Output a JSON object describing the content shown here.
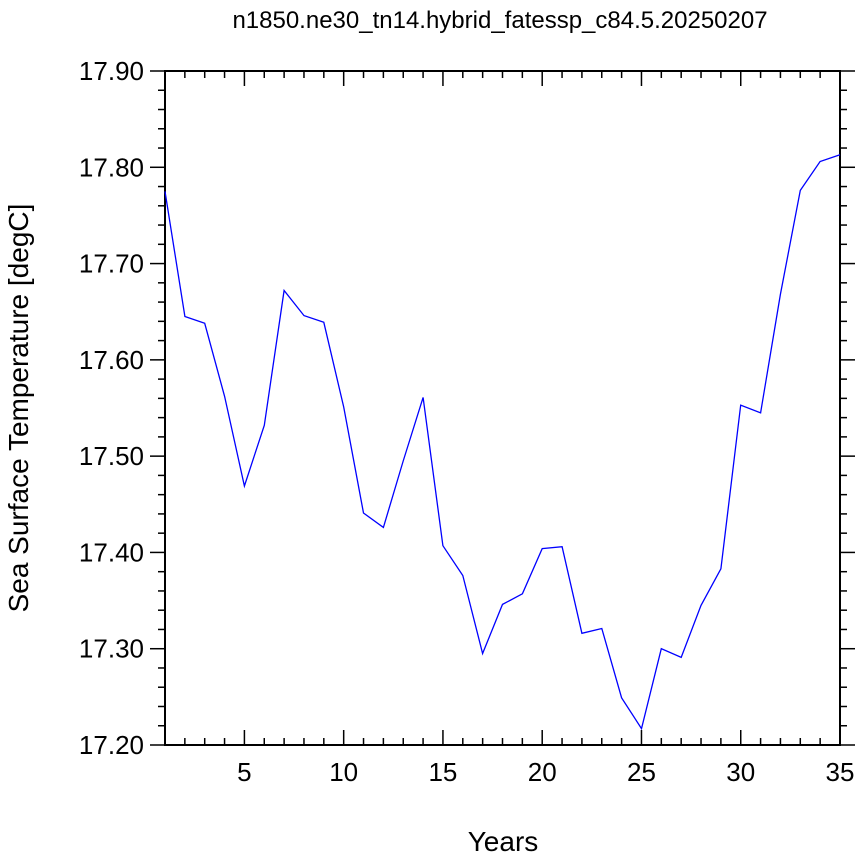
{
  "chart_data": {
    "type": "line",
    "title": "n1850.ne30_tn14.hybrid_fatessp_c84.5.20250207",
    "xlabel": "Years",
    "ylabel": "Sea Surface Temperature [degC]",
    "xlim": [
      1,
      35
    ],
    "ylim": [
      17.2,
      17.9
    ],
    "x_ticks": [
      5,
      10,
      15,
      20,
      25,
      30,
      35
    ],
    "y_ticks": [
      "17.20",
      "17.30",
      "17.40",
      "17.50",
      "17.60",
      "17.70",
      "17.80",
      "17.90"
    ],
    "grid": false,
    "line_color": "#0000ff",
    "series": [
      {
        "x": [
          1,
          2,
          3,
          4,
          5,
          6,
          7,
          8,
          9,
          10,
          11,
          12,
          13,
          14,
          15,
          16,
          17,
          18,
          19,
          20,
          21,
          22,
          23,
          24,
          25,
          26,
          27,
          28,
          29,
          30,
          31,
          32,
          33,
          34,
          35
        ],
        "values": [
          17.775,
          17.645,
          17.638,
          17.562,
          17.469,
          17.532,
          17.672,
          17.646,
          17.639,
          17.551,
          17.441,
          17.426,
          17.495,
          17.561,
          17.407,
          17.376,
          17.295,
          17.346,
          17.357,
          17.404,
          17.406,
          17.316,
          17.321,
          17.249,
          17.217,
          17.3,
          17.291,
          17.345,
          17.383,
          17.553,
          17.545,
          17.668,
          17.776,
          17.806,
          17.813
        ]
      }
    ]
  }
}
